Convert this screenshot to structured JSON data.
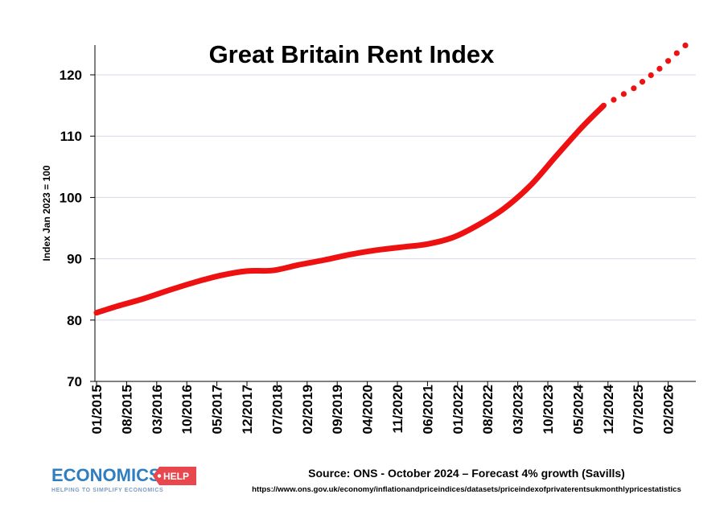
{
  "chart_data": {
    "type": "line",
    "title": "Great Britain Rent Index",
    "ylabel": "Index Jan 2023 = 100",
    "xlabel": "",
    "ylim": [
      70,
      125
    ],
    "yticks": [
      70,
      80,
      90,
      100,
      110,
      120
    ],
    "x_range": [
      "01/2015",
      "06/2026"
    ],
    "xticks": [
      "01/2015",
      "08/2015",
      "03/2016",
      "10/2016",
      "05/2017",
      "12/2017",
      "07/2018",
      "02/2019",
      "09/2019",
      "04/2020",
      "11/2020",
      "06/2021",
      "01/2022",
      "08/2022",
      "03/2023",
      "10/2023",
      "05/2024",
      "12/2024",
      "07/2025",
      "02/2026"
    ],
    "grid": true,
    "series": [
      {
        "name": "",
        "style": "solid",
        "color": "#ee1111",
        "points": [
          [
            "01/2015",
            81.2
          ],
          [
            "06/2015",
            82.3
          ],
          [
            "12/2015",
            83.5
          ],
          [
            "06/2016",
            84.9
          ],
          [
            "12/2016",
            86.2
          ],
          [
            "06/2017",
            87.3
          ],
          [
            "12/2017",
            88.0
          ],
          [
            "06/2018",
            88.1
          ],
          [
            "12/2018",
            89.0
          ],
          [
            "06/2019",
            89.8
          ],
          [
            "12/2019",
            90.7
          ],
          [
            "06/2020",
            91.4
          ],
          [
            "12/2020",
            91.9
          ],
          [
            "06/2021",
            92.4
          ],
          [
            "12/2021",
            93.5
          ],
          [
            "06/2022",
            95.6
          ],
          [
            "12/2022",
            98.3
          ],
          [
            "06/2023",
            102.0
          ],
          [
            "12/2023",
            106.8
          ],
          [
            "06/2024",
            111.5
          ],
          [
            "11/2024",
            115.0
          ]
        ]
      },
      {
        "name": "",
        "style": "dotted",
        "color": "#ee1111",
        "points": [
          [
            "11/2024",
            115.0
          ],
          [
            "06/2025",
            117.8
          ],
          [
            "12/2025",
            121.0
          ],
          [
            "06/2026",
            124.8
          ]
        ]
      }
    ]
  },
  "footer": {
    "source": "Source: ONS - October 2024 – Forecast 4% growth (Savills)",
    "url": "https://www.ons.gov.uk/economy/inflationandpriceindices/datasets/priceindexofprivaterentsukmonthlypricestatistics"
  },
  "logo": {
    "main": "ECONOMICS",
    "badge": "HELP",
    "tagline": "HELPING TO SIMPLIFY ECONOMICS",
    "main_color": "#2f7ec2",
    "badge_color": "#e8474d"
  }
}
